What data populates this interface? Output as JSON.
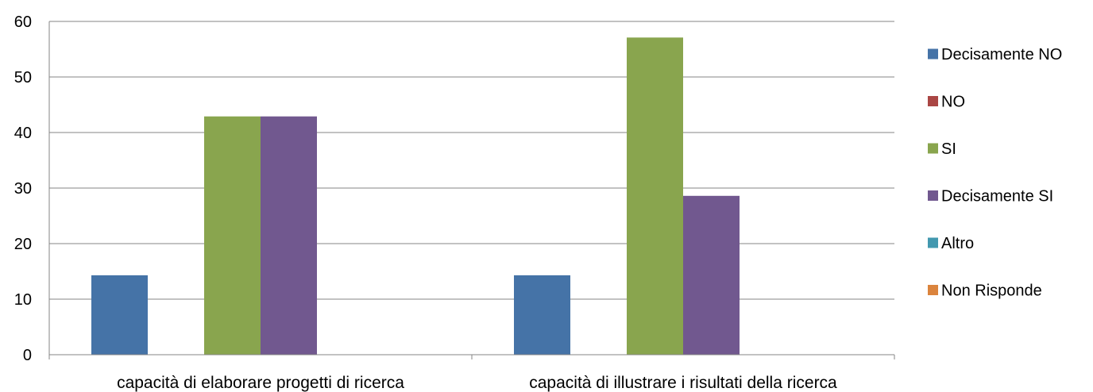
{
  "chart_data": {
    "type": "bar",
    "categories": [
      "capacità di elaborare progetti di ricerca",
      "capacità di illustrare i risultati della ricerca"
    ],
    "series": [
      {
        "name": "Decisamente NO",
        "color": "#4573A7",
        "values": [
          14.3,
          14.3
        ]
      },
      {
        "name": "NO",
        "color": "#AA4644",
        "values": [
          0,
          0
        ]
      },
      {
        "name": "SI",
        "color": "#89A54E",
        "values": [
          42.9,
          57.1
        ]
      },
      {
        "name": "Decisamente SI",
        "color": "#71588F",
        "values": [
          42.9,
          28.6
        ]
      },
      {
        "name": "Altro",
        "color": "#4298AF",
        "values": [
          0,
          0
        ]
      },
      {
        "name": "Non Risponde",
        "color": "#DB843D",
        "values": [
          0,
          0
        ]
      }
    ],
    "y_ticks": [
      "0",
      "10",
      "20",
      "30",
      "40",
      "50",
      "60"
    ],
    "ylim": [
      0,
      60
    ],
    "title": "",
    "xlabel": "",
    "ylabel": "",
    "grid": true,
    "legend_position": "right"
  }
}
